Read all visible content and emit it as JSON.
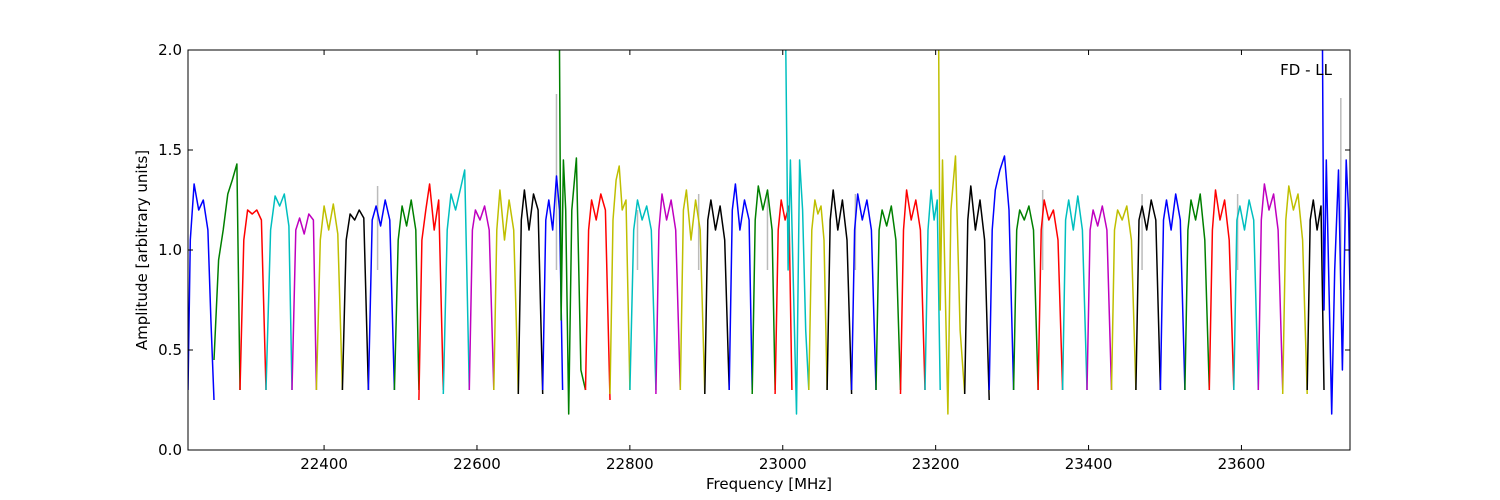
{
  "chart_data": {
    "type": "line",
    "title": "",
    "xlabel": "Frequency [MHz]",
    "ylabel": "Amplitude [arbitrary units]",
    "xlim": [
      22222,
      23742
    ],
    "ylim": [
      0.0,
      2.0
    ],
    "xticks": [
      22400,
      22600,
      22800,
      23000,
      23200,
      23400,
      23600
    ],
    "xtick_labels": [
      "22400",
      "22600",
      "22800",
      "23000",
      "23200",
      "23400",
      "23600"
    ],
    "yticks": [
      0.0,
      0.5,
      1.0,
      1.5,
      2.0
    ],
    "ytick_labels": [
      "0.0",
      "0.5",
      "1.0",
      "1.5",
      "2.0"
    ],
    "grid": false,
    "annotation": "FD - LL",
    "annotation_position": "top-right",
    "color_cycle": [
      "#0000ff",
      "#008000",
      "#ff0000",
      "#00bfbf",
      "#bf00bf",
      "#bfbf00",
      "#000000"
    ],
    "reference_color": "#bbbbbb",
    "spectrum_segments": [
      {
        "color": "#0000ff",
        "x": [
          22222,
          22225,
          22230,
          22236,
          22242,
          22248,
          22252,
          22256
        ],
        "y": [
          0.3,
          1.05,
          1.33,
          1.2,
          1.25,
          1.1,
          0.65,
          0.25
        ]
      },
      {
        "color": "#008000",
        "x": [
          22256,
          22262,
          22268,
          22274,
          22280,
          22286,
          22290
        ],
        "y": [
          0.45,
          0.95,
          1.1,
          1.28,
          1.35,
          1.43,
          0.3
        ]
      },
      {
        "color": "#ff0000",
        "x": [
          22290,
          22295,
          22300,
          22306,
          22312,
          22318,
          22324
        ],
        "y": [
          0.3,
          1.05,
          1.2,
          1.18,
          1.2,
          1.15,
          0.3
        ]
      },
      {
        "color": "#00bfbf",
        "x": [
          22324,
          22330,
          22336,
          22342,
          22348,
          22354,
          22358
        ],
        "y": [
          0.3,
          1.1,
          1.27,
          1.22,
          1.28,
          1.12,
          0.3
        ]
      },
      {
        "color": "#bf00bf",
        "x": [
          22358,
          22363,
          22368,
          22374,
          22380,
          22386,
          22390
        ],
        "y": [
          0.3,
          1.1,
          1.16,
          1.08,
          1.18,
          1.15,
          0.3
        ]
      },
      {
        "color": "#bfbf00",
        "x": [
          22390,
          22395,
          22400,
          22406,
          22412,
          22418,
          22424
        ],
        "y": [
          0.3,
          1.05,
          1.22,
          1.1,
          1.23,
          1.08,
          0.3
        ]
      },
      {
        "color": "#000000",
        "x": [
          22424,
          22429,
          22434,
          22440,
          22446,
          22452,
          22458
        ],
        "y": [
          0.3,
          1.05,
          1.18,
          1.15,
          1.2,
          1.16,
          0.3
        ]
      },
      {
        "color": "#0000ff",
        "x": [
          22458,
          22463,
          22468,
          22474,
          22480,
          22486,
          22492
        ],
        "y": [
          0.3,
          1.15,
          1.22,
          1.12,
          1.25,
          1.15,
          0.3
        ]
      },
      {
        "color": "#008000",
        "x": [
          22492,
          22497,
          22502,
          22508,
          22514,
          22520,
          22524
        ],
        "y": [
          0.3,
          1.05,
          1.22,
          1.12,
          1.25,
          1.1,
          0.3
        ]
      },
      {
        "color": "#ff0000",
        "x": [
          22524,
          22528,
          22533,
          22538,
          22544,
          22550,
          22556
        ],
        "y": [
          0.25,
          1.05,
          1.2,
          1.33,
          1.1,
          1.25,
          0.3
        ]
      },
      {
        "color": "#00bfbf",
        "x": [
          22556,
          22561,
          22566,
          22572,
          22578,
          22584,
          22590
        ],
        "y": [
          0.28,
          1.1,
          1.28,
          1.2,
          1.3,
          1.4,
          0.3
        ]
      },
      {
        "color": "#bf00bf",
        "x": [
          22590,
          22594,
          22598,
          22604,
          22610,
          22616,
          22622
        ],
        "y": [
          0.3,
          1.1,
          1.2,
          1.15,
          1.22,
          1.1,
          0.3
        ]
      },
      {
        "color": "#bfbf00",
        "x": [
          22622,
          22626,
          22630,
          22636,
          22642,
          22648,
          22654
        ],
        "y": [
          0.3,
          1.1,
          1.3,
          1.05,
          1.25,
          1.1,
          0.28
        ]
      },
      {
        "color": "#000000",
        "x": [
          22654,
          22658,
          22662,
          22668,
          22674,
          22680,
          22686
        ],
        "y": [
          0.28,
          1.15,
          1.3,
          1.1,
          1.28,
          1.2,
          0.28
        ]
      },
      {
        "color": "#0000ff",
        "x": [
          22686,
          22690,
          22694,
          22699,
          22704,
          22708,
          22712
        ],
        "y": [
          0.3,
          1.15,
          1.25,
          1.1,
          1.37,
          1.2,
          0.3
        ]
      },
      {
        "color": "#008000",
        "x": [
          22708,
          22710,
          22713,
          22716,
          22720,
          22724,
          22730,
          22736,
          22742
        ],
        "y": [
          2.0,
          0.65,
          1.45,
          1.2,
          0.18,
          1.2,
          1.46,
          0.4,
          0.3
        ]
      },
      {
        "color": "#ff0000",
        "x": [
          22742,
          22746,
          22750,
          22756,
          22762,
          22768,
          22774
        ],
        "y": [
          0.3,
          1.1,
          1.25,
          1.15,
          1.28,
          1.2,
          0.25
        ]
      },
      {
        "color": "#bfbf00",
        "x": [
          22774,
          22778,
          22782,
          22786,
          22790,
          22795,
          22800
        ],
        "y": [
          0.28,
          1.15,
          1.35,
          1.42,
          1.2,
          1.25,
          0.3
        ]
      },
      {
        "color": "#00bfbf",
        "x": [
          22800,
          22805,
          22810,
          22816,
          22822,
          22828,
          22834
        ],
        "y": [
          0.3,
          1.1,
          1.25,
          1.15,
          1.22,
          1.1,
          0.3
        ]
      },
      {
        "color": "#bf00bf",
        "x": [
          22834,
          22838,
          22842,
          22848,
          22854,
          22860,
          22866
        ],
        "y": [
          0.28,
          1.1,
          1.28,
          1.15,
          1.25,
          1.1,
          0.3
        ]
      },
      {
        "color": "#bfbf00",
        "x": [
          22866,
          22870,
          22874,
          22880,
          22886,
          22892,
          22898
        ],
        "y": [
          0.3,
          1.2,
          1.3,
          1.05,
          1.25,
          1.1,
          0.28
        ]
      },
      {
        "color": "#000000",
        "x": [
          22898,
          22902,
          22906,
          22912,
          22918,
          22924,
          22930
        ],
        "y": [
          0.28,
          1.15,
          1.25,
          1.1,
          1.22,
          1.05,
          0.3
        ]
      },
      {
        "color": "#0000ff",
        "x": [
          22930,
          22934,
          22938,
          22944,
          22950,
          22956,
          22960
        ],
        "y": [
          0.3,
          1.2,
          1.33,
          1.1,
          1.25,
          1.15,
          0.3
        ]
      },
      {
        "color": "#008000",
        "x": [
          22960,
          22964,
          22968,
          22974,
          22980,
          22986,
          22990
        ],
        "y": [
          0.28,
          1.15,
          1.32,
          1.2,
          1.3,
          1.1,
          0.3
        ]
      },
      {
        "color": "#ff0000",
        "x": [
          22990,
          22994,
          22998,
          23003,
          23008,
          23012
        ],
        "y": [
          0.28,
          1.1,
          1.25,
          1.15,
          1.22,
          0.3
        ]
      },
      {
        "color": "#00bfbf",
        "x": [
          23004,
          23007,
          23010,
          23014,
          23018,
          23022,
          23026,
          23030,
          23034
        ],
        "y": [
          2.0,
          0.9,
          1.45,
          0.8,
          0.18,
          1.45,
          1.2,
          0.6,
          0.3
        ]
      },
      {
        "color": "#bfbf00",
        "x": [
          23034,
          23038,
          23042,
          23046,
          23050,
          23054,
          23058
        ],
        "y": [
          0.3,
          1.1,
          1.25,
          1.18,
          1.22,
          1.05,
          0.3
        ]
      },
      {
        "color": "#000000",
        "x": [
          23058,
          23062,
          23066,
          23072,
          23078,
          23084,
          23090
        ],
        "y": [
          0.3,
          1.15,
          1.3,
          1.1,
          1.25,
          1.05,
          0.28
        ]
      },
      {
        "color": "#0000ff",
        "x": [
          23090,
          23094,
          23098,
          23104,
          23110,
          23116,
          23122
        ],
        "y": [
          0.3,
          1.1,
          1.28,
          1.15,
          1.25,
          1.1,
          0.3
        ]
      },
      {
        "color": "#008000",
        "x": [
          23122,
          23126,
          23130,
          23136,
          23142,
          23148,
          23154
        ],
        "y": [
          0.3,
          1.1,
          1.2,
          1.12,
          1.22,
          1.05,
          0.3
        ]
      },
      {
        "color": "#ff0000",
        "x": [
          23154,
          23158,
          23162,
          23168,
          23174,
          23180,
          23186
        ],
        "y": [
          0.28,
          1.1,
          1.3,
          1.15,
          1.25,
          1.1,
          0.3
        ]
      },
      {
        "color": "#00bfbf",
        "x": [
          23186,
          23190,
          23194,
          23198,
          23202,
          23206
        ],
        "y": [
          0.3,
          1.1,
          1.3,
          1.15,
          1.25,
          0.3
        ]
      },
      {
        "color": "#bfbf00",
        "x": [
          23204,
          23206,
          23209,
          23212,
          23216,
          23220,
          23226,
          23232,
          23238
        ],
        "y": [
          2.0,
          0.7,
          1.45,
          0.9,
          0.18,
          1.2,
          1.47,
          0.6,
          0.28
        ]
      },
      {
        "color": "#000000",
        "x": [
          23238,
          23242,
          23246,
          23252,
          23258,
          23264,
          23270
        ],
        "y": [
          0.28,
          1.15,
          1.32,
          1.1,
          1.25,
          1.05,
          0.25
        ]
      },
      {
        "color": "#0000ff",
        "x": [
          23270,
          23274,
          23278,
          23284,
          23290,
          23296,
          23302
        ],
        "y": [
          0.3,
          1.1,
          1.3,
          1.4,
          1.47,
          1.2,
          0.3
        ]
      },
      {
        "color": "#008000",
        "x": [
          23302,
          23306,
          23310,
          23316,
          23322,
          23328,
          23334
        ],
        "y": [
          0.3,
          1.1,
          1.2,
          1.15,
          1.22,
          1.1,
          0.3
        ]
      },
      {
        "color": "#ff0000",
        "x": [
          23334,
          23338,
          23342,
          23348,
          23354,
          23360,
          23366
        ],
        "y": [
          0.3,
          1.1,
          1.25,
          1.15,
          1.2,
          1.05,
          0.3
        ]
      },
      {
        "color": "#00bfbf",
        "x": [
          23366,
          23370,
          23374,
          23380,
          23386,
          23392,
          23398
        ],
        "y": [
          0.3,
          1.15,
          1.25,
          1.1,
          1.27,
          1.1,
          0.3
        ]
      },
      {
        "color": "#bf00bf",
        "x": [
          23398,
          23402,
          23406,
          23412,
          23418,
          23424,
          23430
        ],
        "y": [
          0.3,
          1.1,
          1.2,
          1.12,
          1.22,
          1.1,
          0.3
        ]
      },
      {
        "color": "#bfbf00",
        "x": [
          23430,
          23434,
          23438,
          23444,
          23450,
          23456,
          23462
        ],
        "y": [
          0.3,
          1.1,
          1.2,
          1.15,
          1.22,
          1.05,
          0.3
        ]
      },
      {
        "color": "#000000",
        "x": [
          23462,
          23466,
          23470,
          23476,
          23482,
          23488,
          23494
        ],
        "y": [
          0.3,
          1.15,
          1.22,
          1.1,
          1.25,
          1.15,
          0.3
        ]
      },
      {
        "color": "#0000ff",
        "x": [
          23494,
          23498,
          23502,
          23508,
          23514,
          23520,
          23526
        ],
        "y": [
          0.3,
          1.15,
          1.25,
          1.1,
          1.28,
          1.15,
          0.3
        ]
      },
      {
        "color": "#008000",
        "x": [
          23526,
          23530,
          23534,
          23540,
          23546,
          23552,
          23558
        ],
        "y": [
          0.3,
          1.1,
          1.25,
          1.15,
          1.28,
          1.05,
          0.3
        ]
      },
      {
        "color": "#ff0000",
        "x": [
          23558,
          23562,
          23566,
          23572,
          23578,
          23584,
          23590
        ],
        "y": [
          0.3,
          1.1,
          1.3,
          1.15,
          1.25,
          1.05,
          0.3
        ]
      },
      {
        "color": "#00bfbf",
        "x": [
          23590,
          23594,
          23598,
          23604,
          23610,
          23616,
          23622
        ],
        "y": [
          0.3,
          1.15,
          1.22,
          1.1,
          1.25,
          1.15,
          0.3
        ]
      },
      {
        "color": "#bf00bf",
        "x": [
          23622,
          23626,
          23630,
          23636,
          23642,
          23648,
          23654
        ],
        "y": [
          0.3,
          1.15,
          1.33,
          1.2,
          1.28,
          1.1,
          0.3
        ]
      },
      {
        "color": "#bfbf00",
        "x": [
          23654,
          23658,
          23662,
          23668,
          23674,
          23680,
          23686
        ],
        "y": [
          0.28,
          1.15,
          1.32,
          1.2,
          1.28,
          1.05,
          0.28
        ]
      },
      {
        "color": "#000000",
        "x": [
          23686,
          23690,
          23694,
          23699,
          23704,
          23708
        ],
        "y": [
          0.3,
          1.15,
          1.25,
          1.1,
          1.22,
          0.3
        ]
      },
      {
        "color": "#0000ff",
        "x": [
          23706,
          23708,
          23711,
          23714,
          23718,
          23722,
          23727,
          23732,
          23737,
          23740,
          23742
        ],
        "y": [
          2.0,
          0.7,
          1.45,
          0.9,
          0.18,
          0.9,
          1.4,
          0.4,
          1.45,
          1.2,
          0.8
        ]
      }
    ],
    "reference_spikes": [
      {
        "x": 22470,
        "y": 1.32
      },
      {
        "x": 22704,
        "y": 1.78
      },
      {
        "x": 22810,
        "y": 1.2
      },
      {
        "x": 22890,
        "y": 1.28
      },
      {
        "x": 22980,
        "y": 1.3
      },
      {
        "x": 23095,
        "y": 1.28
      },
      {
        "x": 23340,
        "y": 1.3
      },
      {
        "x": 23470,
        "y": 1.28
      },
      {
        "x": 23595,
        "y": 1.28
      },
      {
        "x": 23730,
        "y": 1.76
      }
    ]
  }
}
